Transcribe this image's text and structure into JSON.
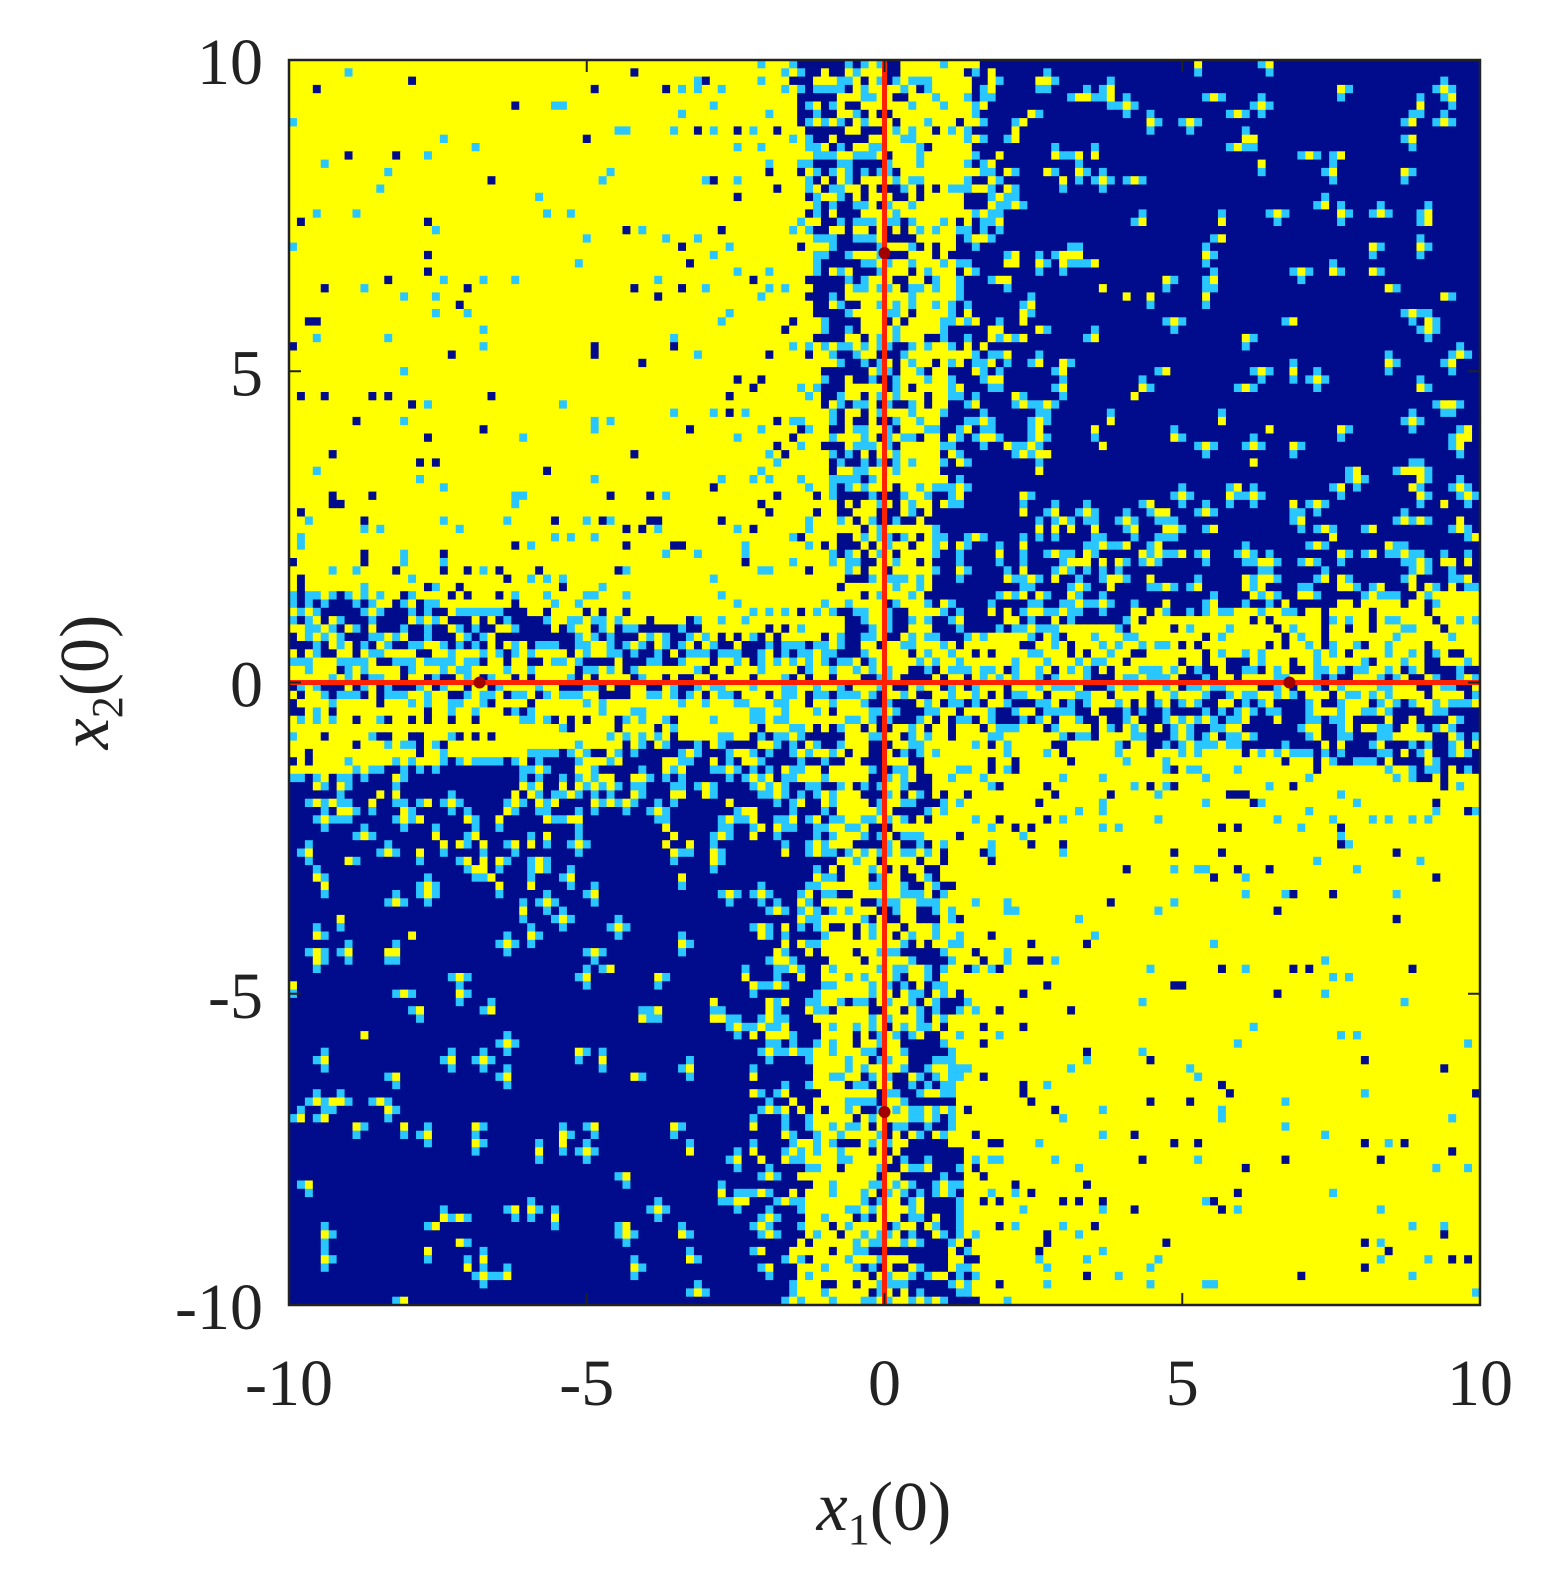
{
  "chart_data": {
    "type": "heatmap",
    "title": "",
    "xlabel": {
      "var": "x",
      "sub": "1",
      "arg": "(0)"
    },
    "ylabel": {
      "var": "x",
      "sub": "2",
      "arg": "(0)"
    },
    "xlim": [
      -10,
      10
    ],
    "ylim": [
      -10,
      10
    ],
    "x_ticks": [
      -10,
      -5,
      0,
      5,
      10
    ],
    "y_ticks": [
      -10,
      -5,
      0,
      5,
      10
    ],
    "x_tick_labels": [
      "-10",
      "-5",
      "0",
      "5",
      "10"
    ],
    "y_tick_labels": [
      "-10",
      "-5",
      "0",
      "5",
      "10"
    ],
    "grid": false,
    "legend": "none",
    "colors": {
      "basin_a": "#000c8c",
      "basin_b": "#ffff00",
      "boundary": "#29c6ff",
      "special": "#ff2200",
      "marker": "#a00000"
    },
    "regions": [
      {
        "quadrant": "top-left",
        "dominant": "basin_b"
      },
      {
        "quadrant": "top-right",
        "dominant": "basin_a"
      },
      {
        "quadrant": "bottom-left",
        "dominant": "basin_a"
      },
      {
        "quadrant": "bottom-right",
        "dominant": "basin_b"
      }
    ],
    "lines": [
      {
        "orientation": "vertical",
        "x": 0,
        "color": "special"
      },
      {
        "orientation": "horizontal",
        "y": 0,
        "color": "special"
      }
    ],
    "points": [
      {
        "x": 0,
        "y": 6.9
      },
      {
        "x": 0,
        "y": -6.9
      },
      {
        "x": -6.8,
        "y": 0
      },
      {
        "x": 6.8,
        "y": 0
      }
    ]
  }
}
